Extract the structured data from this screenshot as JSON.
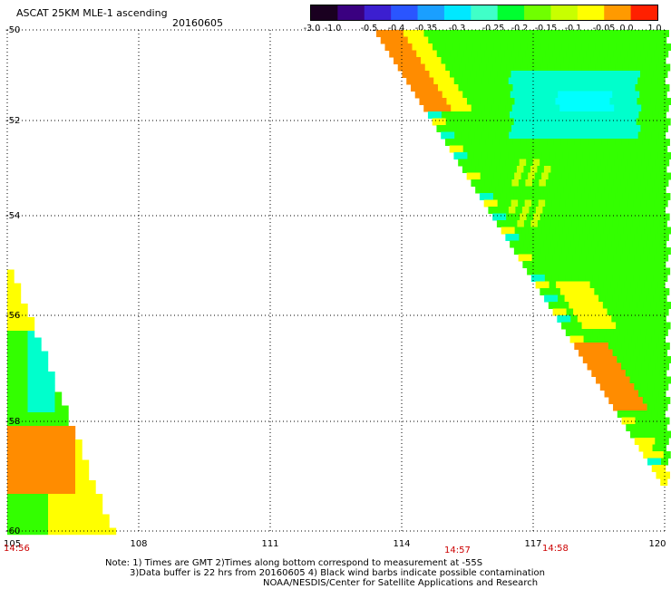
{
  "title": "ASCAT 25KM MLE-1 ascending",
  "date": "20160605",
  "colorbar": {
    "labels": [
      "-3.0",
      "-1.0",
      "-0.5",
      "-0.4",
      "-0.35",
      "-0.3",
      "-0.25",
      "-0.2",
      "-0.15",
      "-0.1",
      "-0.05",
      "0.0",
      "1.0"
    ],
    "colors": [
      "#1a0020",
      "#3a0080",
      "#3c1fd0",
      "#2a55ff",
      "#1a9fff",
      "#00e8ff",
      "#40ffc8",
      "#00ff30",
      "#70ff00",
      "#c8ff00",
      "#ffff00",
      "#ff9a00",
      "#ff2000"
    ]
  },
  "map": {
    "lon_ticks": [
      "105",
      "108",
      "111",
      "114",
      "117",
      "120"
    ],
    "lat_ticks": [
      "-50",
      "-52",
      "-54",
      "-56",
      "-58",
      "-60"
    ],
    "time_labels": [
      "14:56",
      "14:57",
      "14:58"
    ],
    "colors": {
      "orange": "#ff8c00",
      "yellow": "#ffff00",
      "lime": "#ccff00",
      "green": "#33ff00",
      "aqua": "#00ffcc",
      "cyan": "#00ffff",
      "time": "#cc0000"
    }
  },
  "notes": {
    "line1": "Note: 1) Times are GMT 2)Times along bottom correspond to measurement at -55S",
    "line2": "3)Data buffer is 22 hrs from 20160605 4) Black wind barbs indicate possible contamination",
    "line3": "NOAA/NESDIS/Center for Satellite Applications and Research"
  }
}
